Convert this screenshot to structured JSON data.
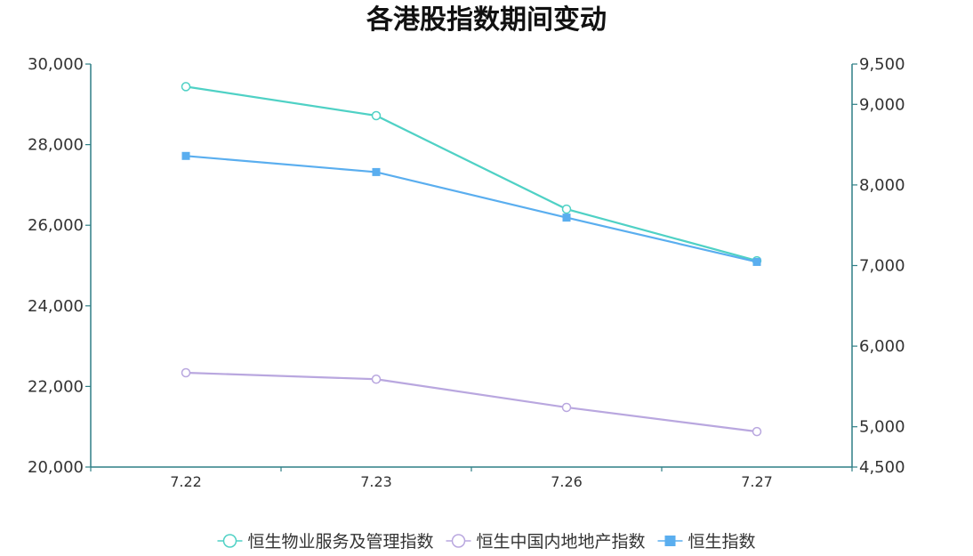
{
  "chart_data": {
    "type": "line",
    "title": "各港股指数期间变动",
    "categories": [
      "7.22",
      "7.23",
      "7.26",
      "7.27"
    ],
    "y_left": {
      "ticks": [
        "20,000",
        "22,000",
        "24,000",
        "26,000",
        "28,000",
        "30,000"
      ],
      "range": [
        20000,
        30000
      ]
    },
    "y_right": {
      "ticks": [
        "4,500",
        "5,000",
        "6,000",
        "7,000",
        "8,000",
        "9,000",
        "9,500"
      ],
      "range": [
        4500,
        9500
      ]
    },
    "series": [
      {
        "name": "恒生物业服务及管理指数",
        "axis": "right",
        "marker": "circle",
        "color": "#4fd1c5",
        "values": [
          9220,
          8860,
          7700,
          7060
        ]
      },
      {
        "name": "恒生中国内地地产指数",
        "axis": "right",
        "marker": "circle",
        "color": "#b9a7df",
        "values": [
          5670,
          5590,
          5240,
          4940
        ]
      },
      {
        "name": "恒生指数",
        "axis": "left",
        "marker": "square",
        "color": "#5aaeef",
        "values": [
          27720,
          27320,
          26190,
          25090
        ]
      }
    ],
    "legend_position": "bottom"
  }
}
